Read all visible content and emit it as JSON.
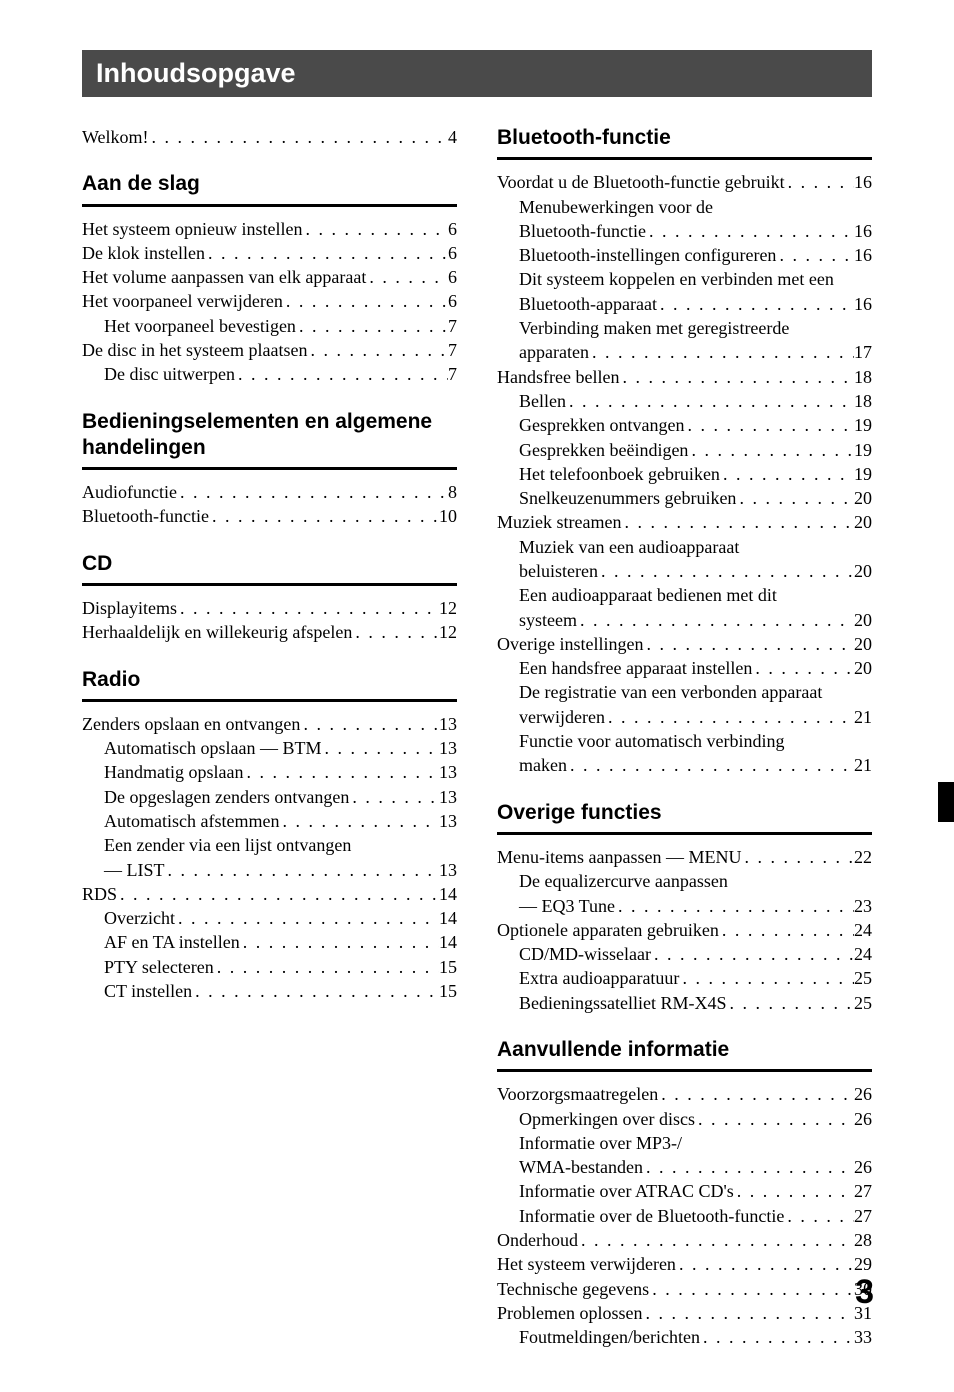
{
  "title": "Inhoudsopgave",
  "page_number": "3",
  "left": {
    "intro": [
      {
        "label": "Welkom!",
        "page": "4",
        "indent": 0
      }
    ],
    "sections": [
      {
        "heading": "Aan de slag",
        "items": [
          {
            "label": "Het systeem opnieuw instellen",
            "page": "6",
            "indent": 0
          },
          {
            "label": "De klok instellen",
            "page": "6",
            "indent": 0
          },
          {
            "label": "Het volume aanpassen van elk apparaat",
            "page": "6",
            "indent": 0
          },
          {
            "label": "Het voorpaneel verwijderen",
            "page": "6",
            "indent": 0
          },
          {
            "label": "Het voorpaneel bevestigen",
            "page": "7",
            "indent": 1
          },
          {
            "label": "De disc in het systeem plaatsen",
            "page": "7",
            "indent": 0
          },
          {
            "label": "De disc uitwerpen",
            "page": "7",
            "indent": 1
          }
        ]
      },
      {
        "heading": "Bedieningselementen en algemene handelingen",
        "items": [
          {
            "label": "Audiofunctie",
            "page": "8",
            "indent": 0
          },
          {
            "label": "Bluetooth-functie",
            "page": "10",
            "indent": 0
          }
        ]
      },
      {
        "heading": "CD",
        "items": [
          {
            "label": "Displayitems",
            "page": "12",
            "indent": 0
          },
          {
            "label": "Herhaaldelijk en willekeurig afspelen",
            "page": "12",
            "indent": 0
          }
        ]
      },
      {
        "heading": "Radio",
        "items": [
          {
            "label": "Zenders opslaan en ontvangen",
            "page": "13",
            "indent": 0
          },
          {
            "label": "Automatisch opslaan — BTM",
            "page": "13",
            "indent": 1
          },
          {
            "label": "Handmatig opslaan",
            "page": "13",
            "indent": 1
          },
          {
            "label": "De opgeslagen zenders ontvangen",
            "page": "13",
            "indent": 1
          },
          {
            "label": "Automatisch afstemmen",
            "page": "13",
            "indent": 1
          },
          {
            "cont": "Een zender via een lijst ontvangen",
            "label": "— LIST",
            "page": "13",
            "indent": 1
          },
          {
            "label": "RDS",
            "page": "14",
            "indent": 0
          },
          {
            "label": "Overzicht",
            "page": "14",
            "indent": 1
          },
          {
            "label": "AF en TA instellen",
            "page": "14",
            "indent": 1
          },
          {
            "label": "PTY selecteren",
            "page": "15",
            "indent": 1
          },
          {
            "label": "CT instellen",
            "page": "15",
            "indent": 1
          }
        ]
      }
    ]
  },
  "right": {
    "sections": [
      {
        "heading": "Bluetooth-functie",
        "items": [
          {
            "label": "Voordat u de Bluetooth-functie gebruikt",
            "page": "16",
            "indent": 0
          },
          {
            "cont": "Menubewerkingen voor de",
            "label": "Bluetooth-functie",
            "page": "16",
            "indent": 1
          },
          {
            "label": "Bluetooth-instellingen configureren",
            "page": "16",
            "indent": 1
          },
          {
            "cont": "Dit systeem koppelen en verbinden met een",
            "label": "Bluetooth-apparaat",
            "page": "16",
            "indent": 1
          },
          {
            "cont": "Verbinding maken met geregistreerde",
            "label": "apparaten",
            "page": "17",
            "indent": 1
          },
          {
            "label": "Handsfree bellen",
            "page": "18",
            "indent": 0
          },
          {
            "label": "Bellen",
            "page": "18",
            "indent": 1
          },
          {
            "label": "Gesprekken ontvangen",
            "page": "19",
            "indent": 1
          },
          {
            "label": "Gesprekken beëindigen",
            "page": "19",
            "indent": 1
          },
          {
            "label": "Het telefoonboek gebruiken",
            "page": "19",
            "indent": 1
          },
          {
            "label": "Snelkeuzenummers gebruiken",
            "page": "20",
            "indent": 1
          },
          {
            "label": "Muziek streamen",
            "page": "20",
            "indent": 0
          },
          {
            "cont": "Muziek van een audioapparaat",
            "label": "beluisteren",
            "page": "20",
            "indent": 1
          },
          {
            "cont": "Een audioapparaat bedienen met dit",
            "label": "systeem",
            "page": "20",
            "indent": 1
          },
          {
            "label": "Overige instellingen",
            "page": "20",
            "indent": 0
          },
          {
            "label": "Een handsfree apparaat instellen",
            "page": "20",
            "indent": 1
          },
          {
            "cont": "De registratie van een verbonden apparaat",
            "label": "verwijderen",
            "page": "21",
            "indent": 1
          },
          {
            "cont": "Functie voor automatisch verbinding",
            "label": "maken",
            "page": "21",
            "indent": 1
          }
        ]
      },
      {
        "heading": "Overige functies",
        "items": [
          {
            "label": "Menu-items aanpassen — MENU",
            "page": "22",
            "indent": 0
          },
          {
            "cont": "De equalizercurve aanpassen",
            "label": "— EQ3 Tune",
            "page": "23",
            "indent": 1
          },
          {
            "label": "Optionele apparaten gebruiken",
            "page": "24",
            "indent": 0
          },
          {
            "label": "CD/MD-wisselaar",
            "page": "24",
            "indent": 1
          },
          {
            "label": "Extra audioapparatuur",
            "page": "25",
            "indent": 1
          },
          {
            "label": "Bedieningssatelliet RM-X4S",
            "page": "25",
            "indent": 1
          }
        ]
      },
      {
        "heading": "Aanvullende informatie",
        "items": [
          {
            "label": "Voorzorgsmaatregelen",
            "page": "26",
            "indent": 0
          },
          {
            "label": "Opmerkingen over discs",
            "page": "26",
            "indent": 1
          },
          {
            "cont": "Informatie over MP3-/",
            "label": "WMA-bestanden",
            "page": "26",
            "indent": 1
          },
          {
            "label": "Informatie over ATRAC CD's",
            "page": "27",
            "indent": 1
          },
          {
            "label": "Informatie over de Bluetooth-functie",
            "page": "27",
            "indent": 1
          },
          {
            "label": "Onderhoud",
            "page": "28",
            "indent": 0
          },
          {
            "label": "Het systeem verwijderen",
            "page": "29",
            "indent": 0
          },
          {
            "label": "Technische gegevens",
            "page": "30",
            "indent": 0
          },
          {
            "label": "Problemen oplossen",
            "page": "31",
            "indent": 0
          },
          {
            "label": "Foutmeldingen/berichten",
            "page": "33",
            "indent": 1
          }
        ]
      }
    ]
  }
}
